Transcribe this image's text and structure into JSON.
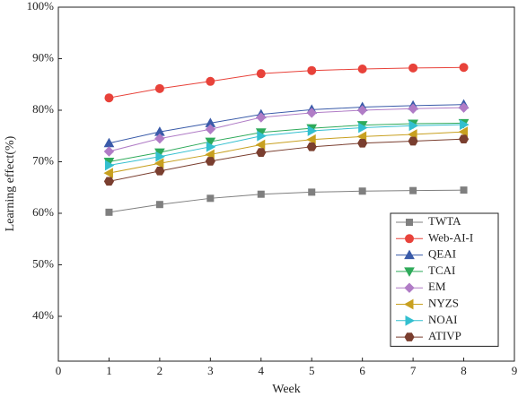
{
  "chart_data": {
    "type": "line",
    "x_label": "Week",
    "y_label": "Learning effect(%)",
    "x": [
      1,
      2,
      3,
      4,
      5,
      6,
      7,
      8
    ],
    "xlim": [
      0,
      9
    ],
    "xticks": [
      0,
      1,
      2,
      3,
      4,
      5,
      6,
      7,
      8,
      9
    ],
    "ylim": [
      31.3,
      100
    ],
    "yticks": [
      {
        "value": 40,
        "label": "40%"
      },
      {
        "value": 50,
        "label": "50%"
      },
      {
        "value": 60,
        "label": "60%"
      },
      {
        "value": 70,
        "label": "70%"
      },
      {
        "value": 80,
        "label": "80%"
      },
      {
        "value": 90,
        "label": "90%"
      },
      {
        "value": 100,
        "label": "100%"
      }
    ],
    "legend": "lower right",
    "series": [
      {
        "name": "TWTA",
        "color": "#7f7f7f",
        "marker": "square",
        "values": [
          60.2,
          61.7,
          62.9,
          63.7,
          64.1,
          64.3,
          64.4,
          64.5
        ]
      },
      {
        "name": "Web-AI-I",
        "color": "#e8423a",
        "marker": "circle",
        "values": [
          82.4,
          84.2,
          85.6,
          87.1,
          87.7,
          88.0,
          88.2,
          88.3
        ]
      },
      {
        "name": "QEAI",
        "color": "#3a5ba9",
        "marker": "triangle-up",
        "values": [
          73.6,
          75.8,
          77.5,
          79.2,
          80.1,
          80.6,
          80.9,
          81.1
        ]
      },
      {
        "name": "TCAI",
        "color": "#2eaa5a",
        "marker": "triangle-down",
        "values": [
          70.0,
          71.8,
          73.9,
          75.7,
          76.5,
          77.1,
          77.4,
          77.5
        ]
      },
      {
        "name": "EM",
        "color": "#b07cc6",
        "marker": "diamond",
        "values": [
          72.0,
          74.5,
          76.3,
          78.6,
          79.5,
          80.0,
          80.3,
          80.5
        ]
      },
      {
        "name": "NYZS",
        "color": "#c8a020",
        "marker": "triangle-left",
        "values": [
          67.8,
          69.7,
          71.4,
          73.3,
          74.3,
          74.9,
          75.3,
          75.8
        ]
      },
      {
        "name": "NOAI",
        "color": "#33bfcf",
        "marker": "triangle-right",
        "values": [
          69.3,
          71.0,
          72.9,
          75.0,
          76.0,
          76.6,
          77.0,
          77.2
        ]
      },
      {
        "name": "ATIVP",
        "color": "#7a3e2f",
        "marker": "hexagon",
        "values": [
          66.2,
          68.2,
          70.1,
          71.8,
          72.9,
          73.6,
          74.0,
          74.4
        ]
      }
    ]
  }
}
